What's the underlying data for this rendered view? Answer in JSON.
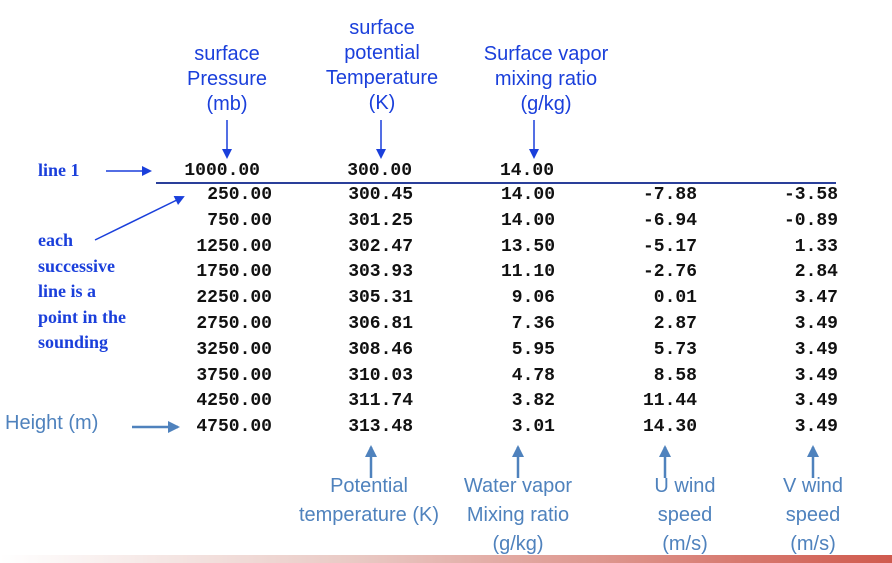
{
  "top_labels": {
    "pressure": [
      "surface",
      "Pressure",
      "(mb)"
    ],
    "theta": [
      "surface",
      "potential",
      "Temperature",
      "(K)"
    ],
    "vapor": [
      "Surface vapor",
      "mixing ratio",
      "(g/kg)"
    ]
  },
  "side_labels": {
    "line1": "line 1",
    "successive": [
      "each",
      "successive",
      "line is a",
      "point in the",
      "sounding"
    ],
    "height": "Height (m)"
  },
  "bottom_labels": {
    "theta": [
      "Potential",
      "temperature (K)"
    ],
    "vapor": [
      "Water vapor",
      "Mixing ratio",
      "(g/kg)"
    ],
    "u": [
      "U wind",
      "speed",
      "(m/s)"
    ],
    "v": [
      "V wind",
      "speed",
      "(m/s)"
    ]
  },
  "header_row": [
    "1000.00",
    "300.00",
    "14.00"
  ],
  "rows": [
    [
      "250.00",
      "300.45",
      "14.00",
      "-7.88",
      "-3.58"
    ],
    [
      "750.00",
      "301.25",
      "14.00",
      "-6.94",
      "-0.89"
    ],
    [
      "1250.00",
      "302.47",
      "13.50",
      "-5.17",
      "1.33"
    ],
    [
      "1750.00",
      "303.93",
      "11.10",
      "-2.76",
      "2.84"
    ],
    [
      "2250.00",
      "305.31",
      "9.06",
      "0.01",
      "3.47"
    ],
    [
      "2750.00",
      "306.81",
      "7.36",
      "2.87",
      "3.49"
    ],
    [
      "3250.00",
      "308.46",
      "5.95",
      "5.73",
      "3.49"
    ],
    [
      "3750.00",
      "310.03",
      "4.78",
      "8.58",
      "3.49"
    ],
    [
      "4250.00",
      "311.74",
      "3.82",
      "11.44",
      "3.49"
    ],
    [
      "4750.00",
      "313.48",
      "3.01",
      "14.30",
      "3.49"
    ]
  ],
  "colors": {
    "label_blue": "#1a3fdb",
    "label_steel": "#4f82bd",
    "text": "#111111",
    "rule": "#2a3f9a",
    "accent_red": "#d05a4e"
  }
}
